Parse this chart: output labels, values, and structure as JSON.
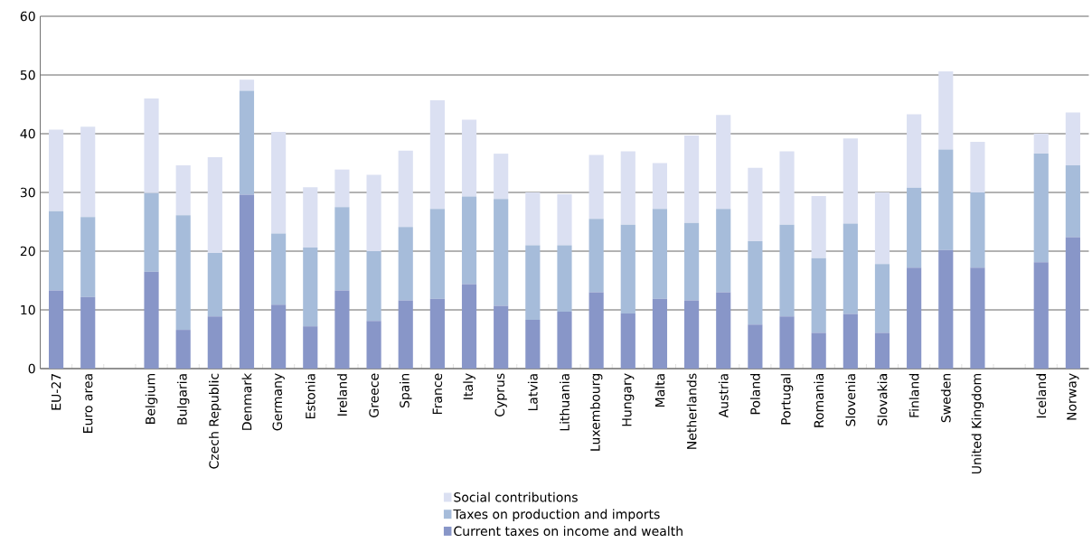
{
  "chart_data": {
    "type": "bar",
    "stacked": true,
    "categories": [
      "EU-27",
      "Euro area",
      null,
      "Belgium",
      "Bulgaria",
      "Czech Republic",
      "Denmark",
      "Germany",
      "Estonia",
      "Ireland",
      "Greece",
      "Spain",
      "France",
      "Italy",
      "Cyprus",
      "Latvia",
      "Lithuania",
      "Luxembourg",
      "Hungary",
      "Malta",
      "Netherlands",
      "Austria",
      "Poland",
      "Portugal",
      "Romania",
      "Slovenia",
      "Slovakia",
      "Finland",
      "Sweden",
      "United Kingdom",
      null,
      "Iceland",
      "Norway"
    ],
    "series": [
      {
        "name": "Current taxes on income and wealth",
        "color": "#8896c8",
        "values": [
          13.3,
          12.2,
          null,
          16.5,
          6.6,
          8.9,
          29.6,
          10.9,
          7.2,
          13.3,
          8.1,
          11.6,
          11.9,
          14.4,
          10.7,
          8.3,
          9.7,
          13.0,
          9.4,
          11.9,
          11.6,
          13.0,
          7.5,
          8.9,
          6.1,
          9.3,
          6.1,
          17.2,
          20.2,
          17.2,
          null,
          18.1,
          22.4
        ]
      },
      {
        "name": "Taxes on production and imports",
        "color": "#a6bcda",
        "values": [
          13.5,
          13.6,
          null,
          13.4,
          19.5,
          10.8,
          17.7,
          12.1,
          13.4,
          14.2,
          11.9,
          12.5,
          15.3,
          14.9,
          18.2,
          12.7,
          11.3,
          12.5,
          15.1,
          15.3,
          13.2,
          14.2,
          14.2,
          15.6,
          12.7,
          15.4,
          11.7,
          13.6,
          17.1,
          12.8,
          null,
          18.5,
          12.2
        ]
      },
      {
        "name": "Social contributions",
        "color": "#dbe0f2",
        "values": [
          13.9,
          15.4,
          null,
          16.1,
          8.5,
          16.3,
          1.9,
          17.3,
          10.3,
          6.4,
          13.0,
          13.0,
          18.5,
          13.1,
          7.7,
          9.0,
          8.7,
          10.9,
          12.5,
          7.8,
          14.9,
          16.0,
          12.5,
          12.5,
          10.6,
          14.5,
          12.2,
          12.5,
          13.3,
          8.6,
          null,
          3.4,
          9.0
        ]
      }
    ],
    "ylim": [
      0,
      60
    ],
    "yticks": [
      0,
      10,
      20,
      30,
      40,
      50,
      60
    ],
    "grid": "y",
    "legend": "bottom"
  }
}
